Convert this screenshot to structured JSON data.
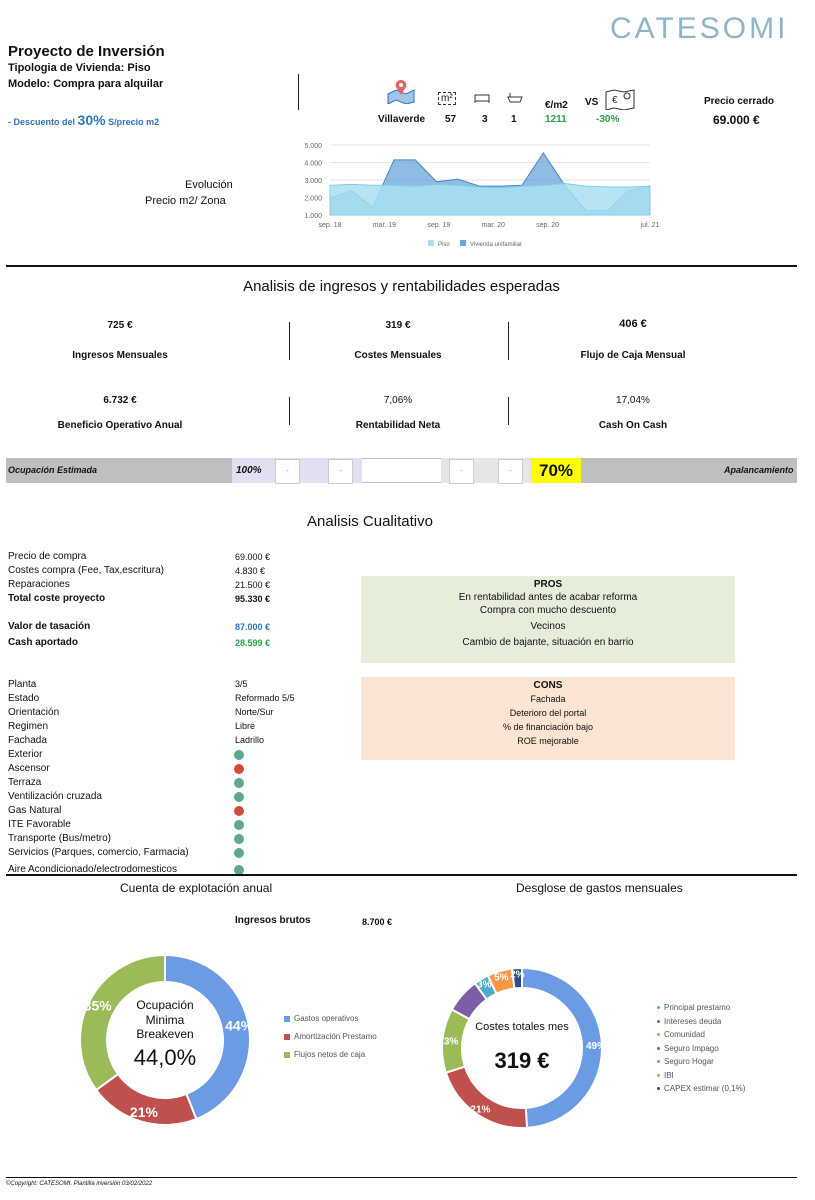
{
  "brand": "CATESOMI",
  "header": {
    "title": "Proyecto de Inversión",
    "tipologia": "Tipologia de Vivienda: Piso",
    "modelo": "Modelo:  Compra para alquilar",
    "descuento_pre": "- Descuento del",
    "descuento_pct": "30%",
    "descuento_post": "S/precio m2"
  },
  "property_bar": {
    "zone": "Villaverde",
    "m2": "57",
    "beds": "3",
    "baths": "1",
    "eur_m2_label": "€/m2",
    "eur_m2": "1211",
    "vs_label": "VS",
    "vs_value": "-30%",
    "precio_label": "Precio cerrado",
    "precio_value": "69.000 €",
    "m2_icon_text": "m²"
  },
  "evolution": {
    "label_line1": "Evolución",
    "label_line2": "Precio m2/ Zona"
  },
  "chart_data": {
    "type": "area",
    "x_tick_labels": [
      "sep. 18",
      "mar. 19",
      "sep. 19",
      "mar. 20",
      "sep. 20",
      "jul. 21"
    ],
    "y_tick_labels": [
      "5.000",
      "4.000",
      "3.000",
      "2.000",
      "1.000"
    ],
    "ylim": [
      1000,
      5000
    ],
    "grid": true,
    "legend_position": "bottom",
    "series": [
      {
        "name": "Piso",
        "color": "#a9dff1",
        "values": [
          2700,
          2750,
          2700,
          2700,
          2650,
          2750,
          2700,
          2600,
          2550,
          2650,
          2700,
          2800,
          2650,
          2600,
          2600,
          2650
        ]
      },
      {
        "name": "Vivienda unifamiliar",
        "color": "#6aa5d8",
        "values": [
          1950,
          2400,
          1450,
          4150,
          4150,
          2900,
          3050,
          2650,
          2650,
          2700,
          4550,
          2700,
          1250,
          1250,
          2400,
          2650
        ]
      }
    ]
  },
  "income_section": {
    "title": "Analisis de ingresos y rentabilidades esperadas",
    "kpis": [
      {
        "value": "725 €",
        "label": "Ingresos Mensuales"
      },
      {
        "value": "319 €",
        "label": "Costes Mensuales"
      },
      {
        "value": "406 €",
        "label": "Flujo de Caja Mensual"
      },
      {
        "value": "6.732 €",
        "label": "Beneficio Operativo Anual"
      },
      {
        "value": "7,06%",
        "label": "Rentabilidad Neta"
      },
      {
        "value": "17,04%",
        "label": "Cash On Cash"
      }
    ],
    "ocupacion_label": "Ocupación Estimada",
    "ocupacion_value": "100%",
    "apalancamiento_label": "Apalancamiento",
    "apalancamiento_value": "70%",
    "stepper_symbol": "-"
  },
  "qualitative": {
    "title": "Analisis Cualitativo",
    "costs": [
      {
        "label": "Precio de compra",
        "value": "69.000 €",
        "bold": false,
        "color": ""
      },
      {
        "label": "Costes compra (Fee, Tax,escritura)",
        "value": "4.830 €",
        "bold": false,
        "color": ""
      },
      {
        "label": "Reparaciones",
        "value": "21.500 €",
        "bold": false,
        "color": ""
      },
      {
        "label": "Total coste proyecto",
        "value": "95.330 €",
        "bold": true,
        "color": ""
      },
      {
        "label": "Valor de tasación",
        "value": "87.000 €",
        "bold": true,
        "color": "#2e75b6"
      },
      {
        "label": "Cash aportado",
        "value": "28.599 €",
        "bold": true,
        "color": "#22a34a"
      }
    ],
    "features": [
      {
        "label": "Planta",
        "value": "3/5"
      },
      {
        "label": "Estado",
        "value": "Reformado 5/5"
      },
      {
        "label": "Orientación",
        "value": "Norte/Sur"
      },
      {
        "label": "Regimen",
        "value": "Libre"
      },
      {
        "label": "Fachada",
        "value": "Ladrillo"
      }
    ],
    "checks": [
      {
        "label": "Exterior",
        "status": "good"
      },
      {
        "label": "Ascensor",
        "status": "bad"
      },
      {
        "label": "Terraza",
        "status": "good"
      },
      {
        "label": "Ventilización cruzada",
        "status": "good"
      },
      {
        "label": "Gas Natural",
        "status": "bad"
      },
      {
        "label": "ITE Favorable",
        "status": "good"
      },
      {
        "label": "Transporte (Bus/metro)",
        "status": "good"
      },
      {
        "label": "Servicios (Parques, comercio, Farmacia)",
        "status": "good"
      },
      {
        "label": "Aire Acondicionado/electrodomesticos",
        "status": "good"
      }
    ],
    "pros_title": "PROS",
    "pros": [
      "En rentabilidad antes de acabar reforma",
      "Compra con mucho descuento",
      "Vecinos",
      "Cambio de bajante, situación en barrio"
    ],
    "cons_title": "CONS",
    "cons": [
      "Fachada",
      "Deterioro del portal",
      "% de financiación bajo",
      "ROE mejorable"
    ]
  },
  "annual": {
    "title": "Cuenta de explotación anual",
    "ingresos_label": "Ingresos brutos",
    "ingresos_value": "8.700 €",
    "center_line1": "Ocupación",
    "center_line2": "Minima",
    "center_line3": "Breakeven",
    "center_value": "44,0%",
    "slices": [
      {
        "name": "Gastos operativos",
        "pct": 44,
        "label": "44%",
        "color": "#6a9be3"
      },
      {
        "name": "Amortización Prestamo",
        "pct": 21,
        "label": "21%",
        "color": "#c0504d"
      },
      {
        "name": "Flujos netos de caja",
        "pct": 35,
        "label": "35%",
        "color": "#9bbb59"
      }
    ]
  },
  "monthly": {
    "title": "Desglose de gastos mensuales",
    "center_line1": "Costes totales mes",
    "center_value": "319 €",
    "slices": [
      {
        "name": "Principal prestamo",
        "pct": 49,
        "label": "49%",
        "color": "#6a9be3"
      },
      {
        "name": "Intereses deuda",
        "pct": 21,
        "label": "21%",
        "color": "#c0504d"
      },
      {
        "name": "Comunidad",
        "pct": 13,
        "label": "13%",
        "color": "#9bbb59"
      },
      {
        "name": "Seguro Impago",
        "pct": 7,
        "label": "",
        "color": "#7b5ea7"
      },
      {
        "name": "Seguro Hogar",
        "pct": 3,
        "label": "3%",
        "color": "#4bacc6"
      },
      {
        "name": "IBI",
        "pct": 5,
        "label": "5%",
        "color": "#f79646"
      },
      {
        "name": "CAPEX estimar (0,1%)",
        "pct": 2,
        "label": "2%",
        "color": "#2c4d8b"
      }
    ]
  },
  "footer": "©Copyright: CATESOMI. Plantilla inversión 03/02/2022"
}
